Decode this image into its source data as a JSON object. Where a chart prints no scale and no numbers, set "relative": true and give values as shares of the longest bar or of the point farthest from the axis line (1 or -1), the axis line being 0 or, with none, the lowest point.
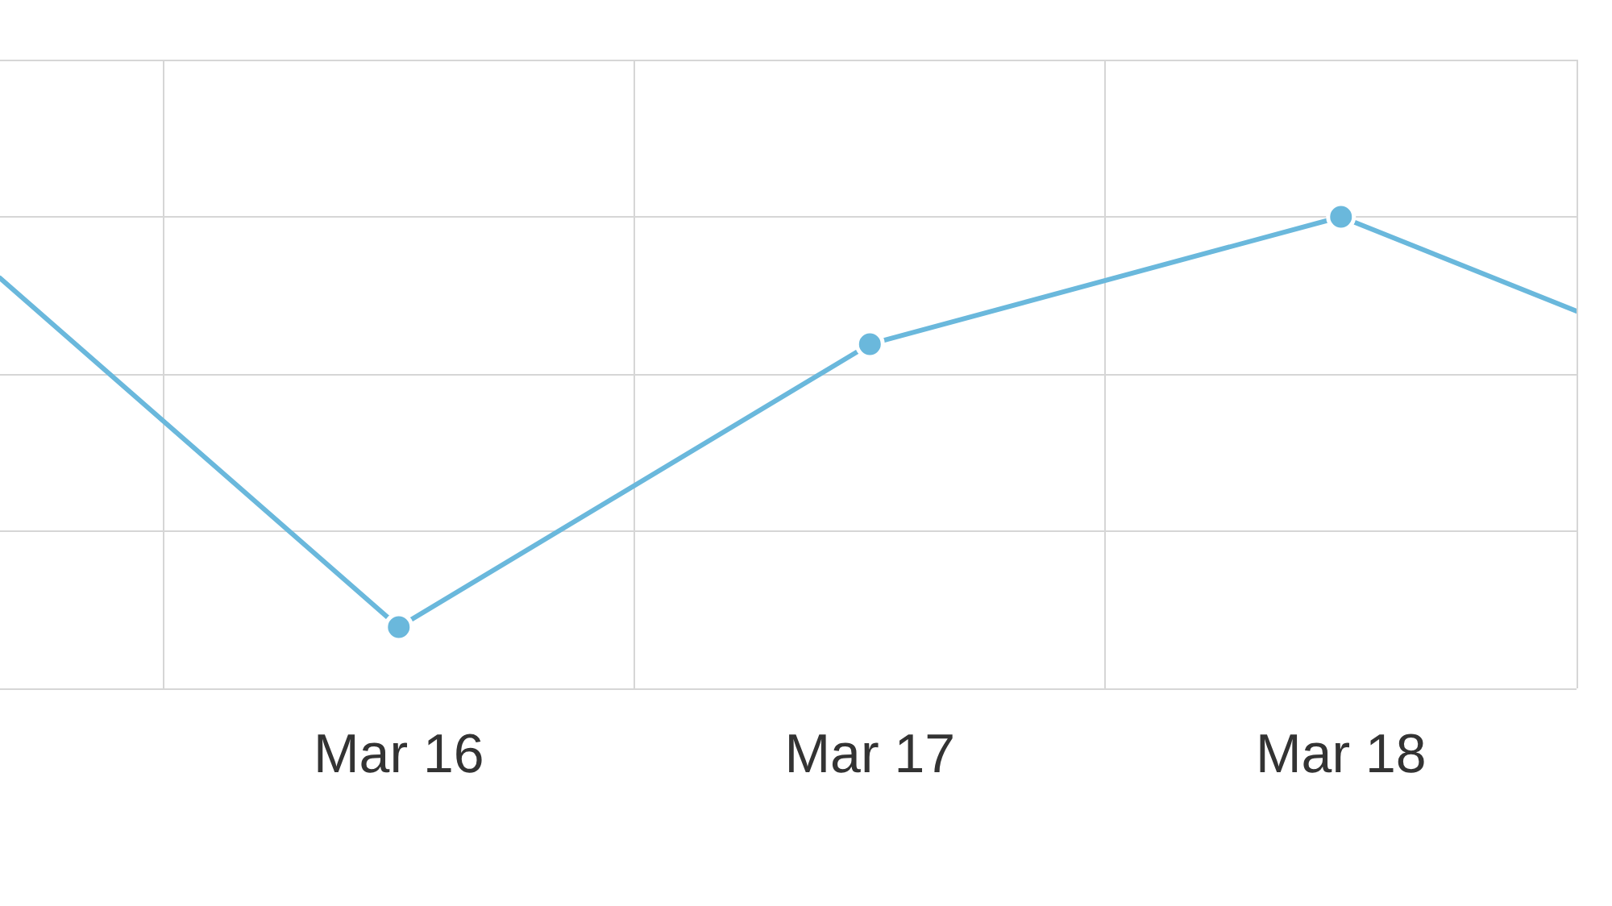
{
  "chart_data": {
    "type": "line",
    "relative": true,
    "x": [
      "--03-15T03:41",
      "--03-16",
      "--03-17",
      "--03-18",
      "--03-18T12:00"
    ],
    "values": [
      0.87,
      0.13,
      0.73,
      1,
      0.8
    ],
    "color": "#6ab8dc",
    "xlim": [
      "--03-15T03:41",
      "--03-18T12:00"
    ],
    "xticks": [
      {
        "value": "--03-15T12:00",
        "label": null
      },
      {
        "value": "--03-16",
        "label": "Mar 16"
      },
      {
        "value": "--03-16T12:00",
        "label": null
      },
      {
        "value": "--03-17",
        "label": "Mar 17"
      },
      {
        "value": "--03-17T12:00",
        "label": null
      },
      {
        "value": "--03-18",
        "label": "Mar 18"
      },
      {
        "value": "--03-18T12:00",
        "label": null
      }
    ],
    "grid": true,
    "marker": "circle",
    "line_style": "solid"
  }
}
